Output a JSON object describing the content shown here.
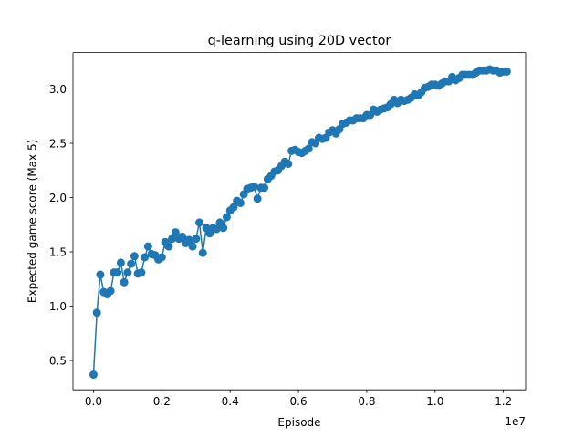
{
  "chart_data": {
    "type": "line",
    "title": "q-learning using 20D vector",
    "xlabel": "Episode",
    "ylabel": "Expected game score (Max 5)",
    "x_offset_label": "1e7",
    "xlim": [
      -0.06,
      1.265
    ],
    "ylim": [
      0.23,
      3.335
    ],
    "x_ticks": [
      0.0,
      0.2,
      0.4,
      0.6,
      0.8,
      1.0,
      1.2
    ],
    "x_tick_labels": [
      "0.0",
      "0.2",
      "0.4",
      "0.6",
      "0.8",
      "1.0",
      "1.2"
    ],
    "y_ticks": [
      0.5,
      1.0,
      1.5,
      2.0,
      2.5,
      3.0
    ],
    "y_tick_labels": [
      "0.5",
      "1.0",
      "1.5",
      "2.0",
      "2.5",
      "3.0"
    ],
    "grid": false,
    "legend": "none",
    "series": [
      {
        "color": "#1f77b4",
        "marker": "circle",
        "x": [
          0.0,
          0.01,
          0.02,
          0.03,
          0.04,
          0.05,
          0.06,
          0.07,
          0.08,
          0.09,
          0.1,
          0.11,
          0.12,
          0.13,
          0.14,
          0.15,
          0.16,
          0.17,
          0.18,
          0.19,
          0.2,
          0.21,
          0.22,
          0.23,
          0.24,
          0.25,
          0.26,
          0.27,
          0.28,
          0.29,
          0.3,
          0.31,
          0.32,
          0.33,
          0.34,
          0.35,
          0.36,
          0.37,
          0.38,
          0.39,
          0.4,
          0.41,
          0.42,
          0.43,
          0.44,
          0.45,
          0.46,
          0.47,
          0.48,
          0.49,
          0.5,
          0.51,
          0.52,
          0.53,
          0.54,
          0.55,
          0.56,
          0.57,
          0.58,
          0.59,
          0.6,
          0.61,
          0.62,
          0.63,
          0.64,
          0.65,
          0.66,
          0.67,
          0.68,
          0.69,
          0.7,
          0.71,
          0.72,
          0.73,
          0.74,
          0.75,
          0.76,
          0.77,
          0.78,
          0.79,
          0.8,
          0.81,
          0.82,
          0.83,
          0.84,
          0.85,
          0.86,
          0.87,
          0.88,
          0.89,
          0.9,
          0.91,
          0.92,
          0.93,
          0.94,
          0.95,
          0.96,
          0.97,
          0.98,
          0.99,
          1.0,
          1.01,
          1.02,
          1.03,
          1.04,
          1.05,
          1.06,
          1.07,
          1.08,
          1.09,
          1.1,
          1.11,
          1.12,
          1.13,
          1.14,
          1.15,
          1.16,
          1.17,
          1.18,
          1.19,
          1.2,
          1.21
        ],
        "y": [
          0.37,
          0.94,
          1.29,
          1.13,
          1.11,
          1.14,
          1.31,
          1.31,
          1.4,
          1.22,
          1.31,
          1.39,
          1.46,
          1.3,
          1.31,
          1.45,
          1.55,
          1.48,
          1.47,
          1.43,
          1.45,
          1.59,
          1.55,
          1.62,
          1.68,
          1.62,
          1.64,
          1.58,
          1.61,
          1.55,
          1.62,
          1.77,
          1.49,
          1.72,
          1.67,
          1.72,
          1.71,
          1.77,
          1.72,
          1.82,
          1.88,
          1.91,
          1.97,
          1.95,
          2.03,
          2.08,
          2.09,
          2.1,
          1.99,
          2.09,
          2.09,
          2.17,
          2.2,
          2.24,
          2.25,
          2.29,
          2.33,
          2.31,
          2.43,
          2.44,
          2.42,
          2.41,
          2.43,
          2.45,
          2.51,
          2.5,
          2.55,
          2.54,
          2.55,
          2.6,
          2.62,
          2.59,
          2.63,
          2.68,
          2.69,
          2.71,
          2.71,
          2.73,
          2.73,
          2.73,
          2.76,
          2.76,
          2.81,
          2.79,
          2.81,
          2.82,
          2.83,
          2.86,
          2.9,
          2.87,
          2.9,
          2.89,
          2.9,
          2.92,
          2.95,
          2.94,
          2.97,
          3.01,
          3.02,
          3.04,
          3.04,
          3.03,
          3.05,
          3.07,
          3.07,
          3.11,
          3.08,
          3.1,
          3.13,
          3.13,
          3.13,
          3.13,
          3.15,
          3.17,
          3.17,
          3.17,
          3.18,
          3.17,
          3.17,
          3.15,
          3.16,
          3.16
        ]
      }
    ]
  }
}
